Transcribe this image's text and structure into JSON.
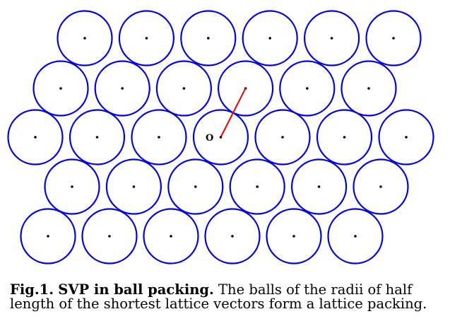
{
  "figure": {
    "origin_label": "O",
    "circle_color": "#0000ee",
    "vector_color": "#ee0000",
    "center_color": "#000000",
    "rows": [
      {
        "count": 6
      },
      {
        "count": 6
      },
      {
        "count": 7
      },
      {
        "count": 6
      },
      {
        "count": 6
      }
    ]
  },
  "caption": {
    "label": "Fig.1.",
    "title": "SVP in ball packing.",
    "text": "The balls of the radii of half length of the shortest lattice vectors form a lattice packing."
  }
}
